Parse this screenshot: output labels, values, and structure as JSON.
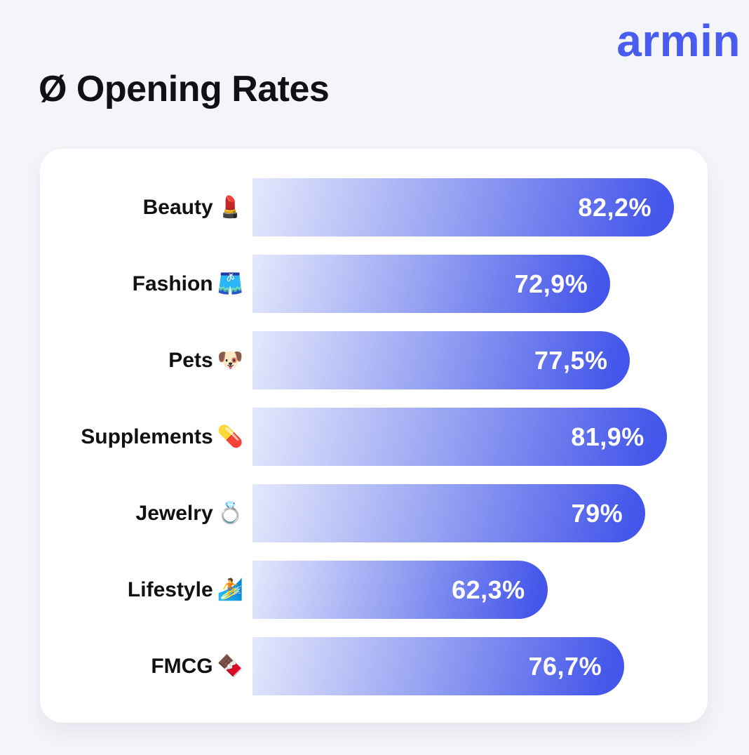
{
  "page": {
    "background_color": "#f4f5f9",
    "card_color": "#ffffff"
  },
  "header": {
    "title": "Ø Opening Rates",
    "title_color": "#0f1115",
    "logo_text": "armin",
    "logo_color": "#4a5cf0"
  },
  "chart_data": {
    "type": "bar",
    "orientation": "horizontal",
    "title": "Ø Opening Rates",
    "categories": [
      "Beauty",
      "Fashion",
      "Pets",
      "Supplements",
      "Jewelry",
      "Lifestyle",
      "FMCG"
    ],
    "category_emojis": [
      "💄",
      "🩳",
      "🐶",
      "💊",
      "💍",
      "🏄",
      "🍫"
    ],
    "values": [
      82.2,
      72.9,
      77.5,
      81.9,
      79.0,
      62.3,
      76.7
    ],
    "value_labels": [
      "82,2%",
      "72,9%",
      "77,5%",
      "81,9%",
      "79%",
      "62,3%",
      "76,7%"
    ],
    "unit": "%",
    "decimal_separator": ",",
    "bar_width_pct": [
      100,
      84.9,
      89.6,
      98.3,
      93.2,
      70.0,
      88.2
    ],
    "bar_gradient_start": "#e4e8fc",
    "bar_gradient_end": "#4355ea",
    "bar_value_color": "#ffffff",
    "axis_hidden": true,
    "grid": false,
    "legend_position": "none"
  }
}
